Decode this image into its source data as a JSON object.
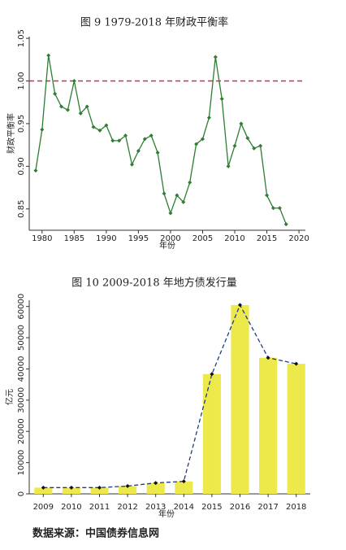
{
  "chart_data": [
    {
      "type": "line",
      "title": "图 9   1979-2018 年财政平衡率",
      "y_label": "财政平衡率",
      "x_label": "年份",
      "x": [
        1979,
        1980,
        1981,
        1982,
        1983,
        1984,
        1985,
        1986,
        1987,
        1988,
        1989,
        1990,
        1991,
        1992,
        1993,
        1994,
        1995,
        1996,
        1997,
        1998,
        1999,
        2000,
        2001,
        2002,
        2003,
        2004,
        2005,
        2006,
        2007,
        2008,
        2009,
        2010,
        2011,
        2012,
        2013,
        2014,
        2015,
        2016,
        2017,
        2018
      ],
      "values": [
        0.895,
        0.943,
        1.03,
        0.985,
        0.97,
        0.966,
        1.0,
        0.962,
        0.97,
        0.946,
        0.942,
        0.948,
        0.93,
        0.93,
        0.936,
        0.902,
        0.918,
        0.932,
        0.936,
        0.916,
        0.868,
        0.845,
        0.866,
        0.858,
        0.881,
        0.926,
        0.932,
        0.957,
        1.028,
        0.979,
        0.9,
        0.924,
        0.95,
        0.933,
        0.921,
        0.924,
        0.866,
        0.851,
        0.851,
        0.832
      ],
      "color": "#2e7d32",
      "reference_line": 1,
      "reference_color": "#c8304a",
      "xlim": [
        1978,
        2021
      ],
      "xticks": [
        1980,
        1985,
        1990,
        1995,
        2000,
        2005,
        2010,
        2015,
        2020
      ],
      "ylim": [
        0.825,
        1.052
      ],
      "yticks": [
        {
          "value": 0.85,
          "label": "0.85"
        },
        {
          "value": 0.9,
          "label": "0.90"
        },
        {
          "value": 0.95,
          "label": "0.95"
        },
        {
          "value": 1,
          "label": "1.00"
        },
        {
          "value": 1.05,
          "label": "1.05"
        }
      ]
    },
    {
      "type": "bar",
      "title": "图 10   2009-2018 年地方债发行量",
      "y_label": "亿元",
      "x_label": "年份",
      "categories": [
        "2009",
        "2010",
        "2011",
        "2012",
        "2013",
        "2014",
        "2015",
        "2016",
        "2017",
        "2018"
      ],
      "values": [
        2000,
        2000,
        2000,
        2500,
        3500,
        4000,
        38351,
        60458,
        43581,
        41652
      ],
      "color": "#ede94a",
      "line_color": "#1f3a8a",
      "ylim": [
        0,
        62000
      ],
      "yticks": [
        0,
        10000,
        20000,
        30000,
        40000,
        50000,
        60000
      ]
    }
  ],
  "source": "数据来源：中国债券信息网"
}
